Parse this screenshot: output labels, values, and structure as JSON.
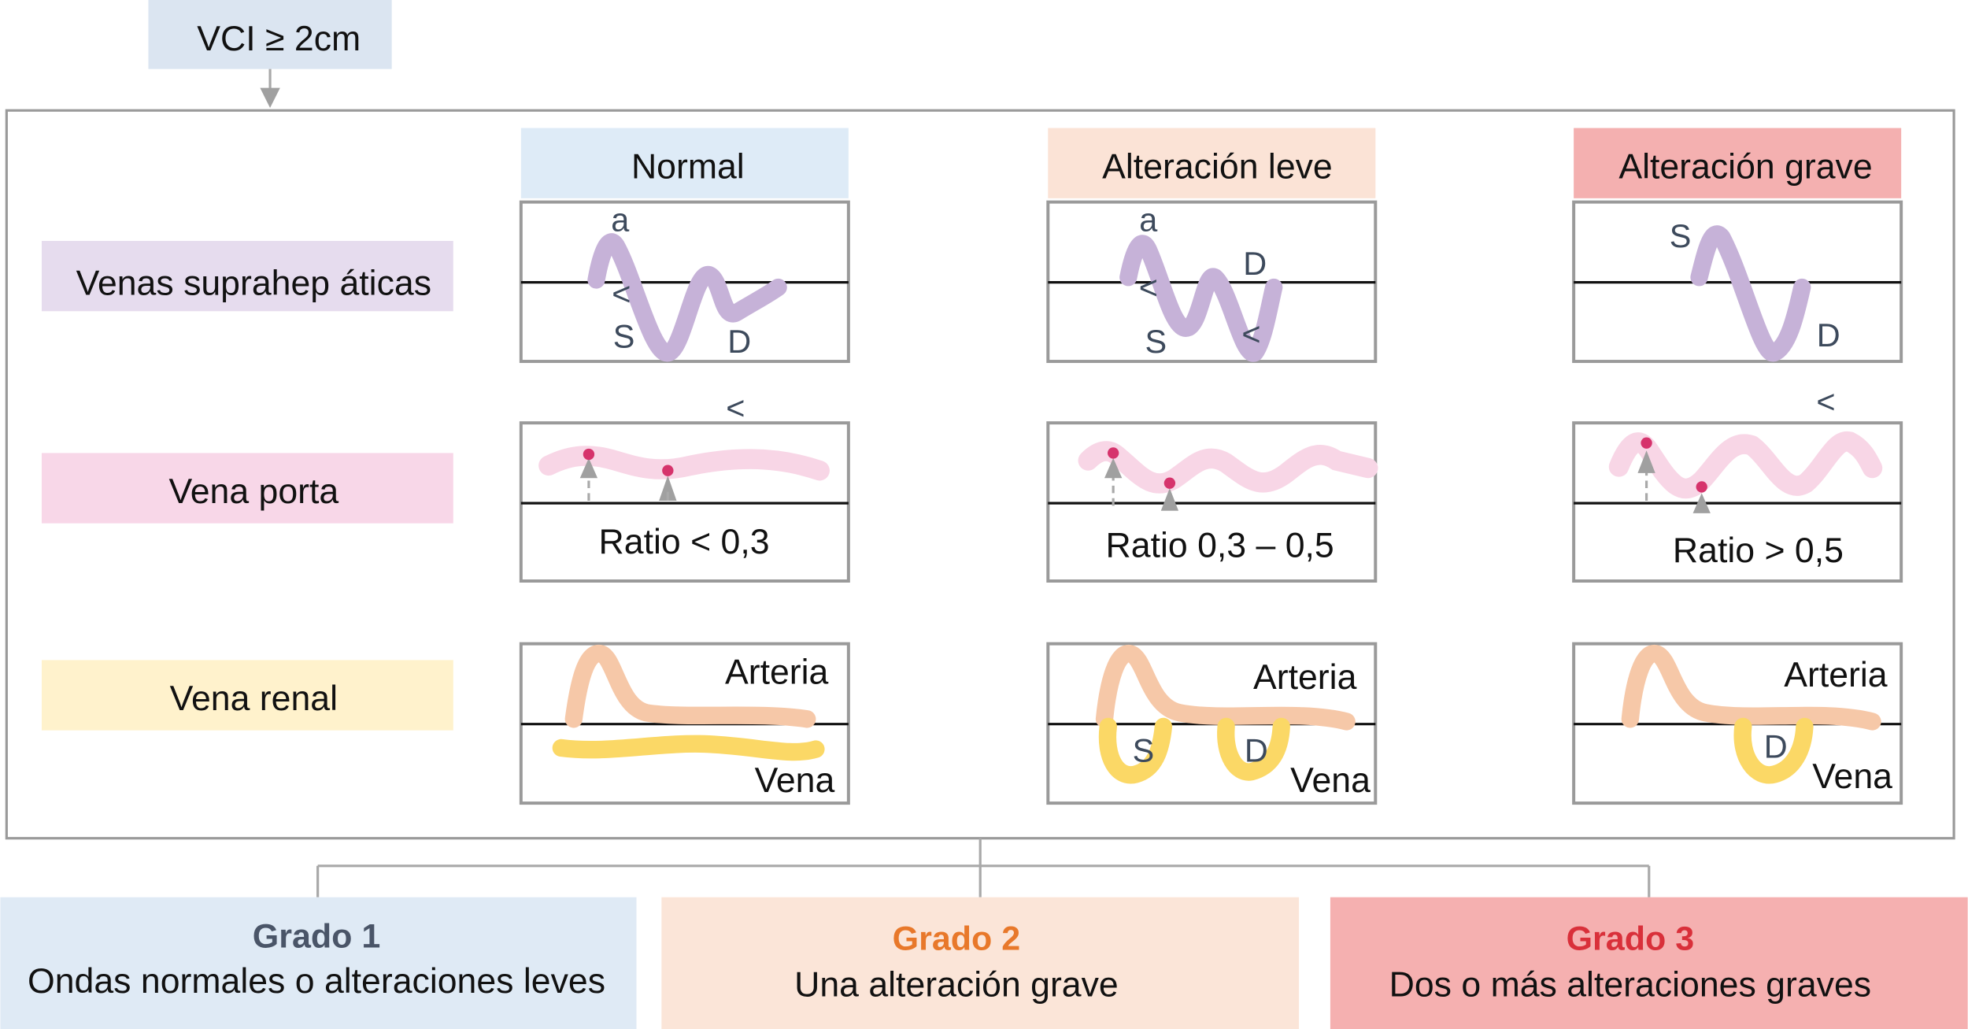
{
  "top": {
    "condition": "VCI ≥ 2cm"
  },
  "rows": [
    {
      "label": "Venas suprahep áticas",
      "color": "#e6dcee"
    },
    {
      "label": "Vena porta",
      "color": "#f8d7e8"
    },
    {
      "label": "Vena renal",
      "color": "#fff2cc"
    }
  ],
  "columns": [
    {
      "header": "Normal",
      "color": "#deebf7",
      "ratio": "Ratio < 0,3"
    },
    {
      "header": "Alteración leve",
      "color": "#fbe3d6",
      "ratio": "Ratio 0,3 – 0,5"
    },
    {
      "header": "Alteración grave",
      "color": "#f4b0b0",
      "ratio": "Ratio > 0,5"
    }
  ],
  "wave_labels": {
    "a": "a",
    "s": "S",
    "d": "D",
    "lt": "<",
    "arteria": "Arteria",
    "vena": "Vena"
  },
  "grades": [
    {
      "title": "Grado 1",
      "desc": "Ondas normales o alteraciones leves",
      "color": "#4a5568",
      "bg": "#dfeaf5"
    },
    {
      "title": "Grado 2",
      "desc": "Una alteración grave",
      "color": "#e8782a",
      "bg": "#fbe5d8"
    },
    {
      "title": "Grado 3",
      "desc": "Dos o más alteraciones graves",
      "color": "#d9303a",
      "bg": "#f5b0b0"
    }
  ]
}
